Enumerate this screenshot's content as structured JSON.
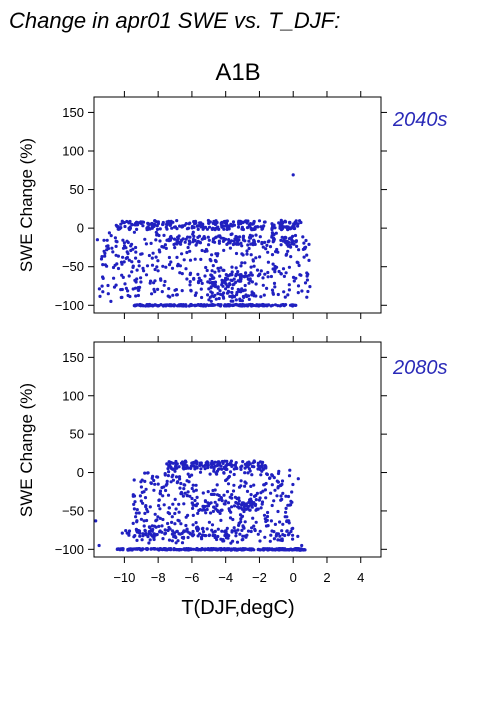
{
  "figure": {
    "title": "Change in apr01 SWE vs. T_DJF:",
    "scenario": "A1B",
    "xlabel": "T(DJF,degC)",
    "ylabel": "SWE Change (%)"
  },
  "colors": {
    "points": "#2020c0",
    "period_label": "#2a2ab8",
    "axes": "#000000"
  },
  "chart_data": [
    {
      "type": "scatter",
      "title": "2040s",
      "xlabel": "",
      "ylabel": "SWE Change (%)",
      "xlim": [
        -11.8,
        5.2
      ],
      "ylim": [
        -110,
        170
      ],
      "xticks": [
        -10,
        -8,
        -6,
        -4,
        -2,
        0,
        2,
        4
      ],
      "yticks": [
        -100,
        -50,
        0,
        50,
        100,
        150
      ],
      "ytick_labels": [
        "−100",
        "−50",
        "0",
        "50",
        "100",
        "150"
      ],
      "grid": false,
      "series": [
        {
          "clusters": [
            {
              "x": [
                -9.5,
                0.2
              ],
              "y": [
                -101,
                -99
              ],
              "n": 220
            },
            {
              "x": [
                -10.5,
                0.5
              ],
              "y": [
                -2,
                10
              ],
              "n": 260
            },
            {
              "x": [
                -7.5,
                0.2
              ],
              "y": [
                -22,
                -10
              ],
              "n": 110
            },
            {
              "x": [
                -11.5,
                1.0
              ],
              "y": [
                -90,
                -5
              ],
              "n": 420
            },
            {
              "x": [
                -5,
                -2.5
              ],
              "y": [
                -95,
                -60
              ],
              "n": 90
            }
          ],
          "points": [
            [
              0.0,
              69
            ],
            [
              -11.6,
              -15
            ],
            [
              -11.2,
              -30
            ],
            [
              0.8,
              -35
            ],
            [
              -10.8,
              -95
            ]
          ]
        }
      ]
    },
    {
      "type": "scatter",
      "title": "2080s",
      "xlabel": "T(DJF,degC)",
      "ylabel": "SWE Change (%)",
      "xlim": [
        -11.8,
        5.2
      ],
      "ylim": [
        -110,
        170
      ],
      "xticks": [
        -10,
        -8,
        -6,
        -4,
        -2,
        0,
        2,
        4
      ],
      "xtick_labels": [
        "−10",
        "−8",
        "−6",
        "−4",
        "−2",
        "0",
        "2",
        "4"
      ],
      "yticks": [
        -100,
        -50,
        0,
        50,
        100,
        150
      ],
      "ytick_labels": [
        "−100",
        "−50",
        "0",
        "50",
        "100",
        "150"
      ],
      "grid": false,
      "series": [
        {
          "clusters": [
            {
              "x": [
                -10.5,
                0.7
              ],
              "y": [
                -101,
                -99
              ],
              "n": 300
            },
            {
              "x": [
                -7.5,
                -1.5
              ],
              "y": [
                4,
                15
              ],
              "n": 160
            },
            {
              "x": [
                -10.5,
                0.3
              ],
              "y": [
                -85,
                -75
              ],
              "n": 90
            },
            {
              "x": [
                -9.5,
                0.0
              ],
              "y": [
                -92,
                2
              ],
              "n": 420
            },
            {
              "x": [
                -6,
                -2
              ],
              "y": [
                -50,
                -35
              ],
              "n": 60
            }
          ],
          "points": [
            [
              -11.7,
              -63
            ],
            [
              -11.5,
              -95
            ],
            [
              0.3,
              -8
            ],
            [
              -0.2,
              3
            ],
            [
              0.5,
              -95
            ]
          ]
        }
      ]
    }
  ]
}
